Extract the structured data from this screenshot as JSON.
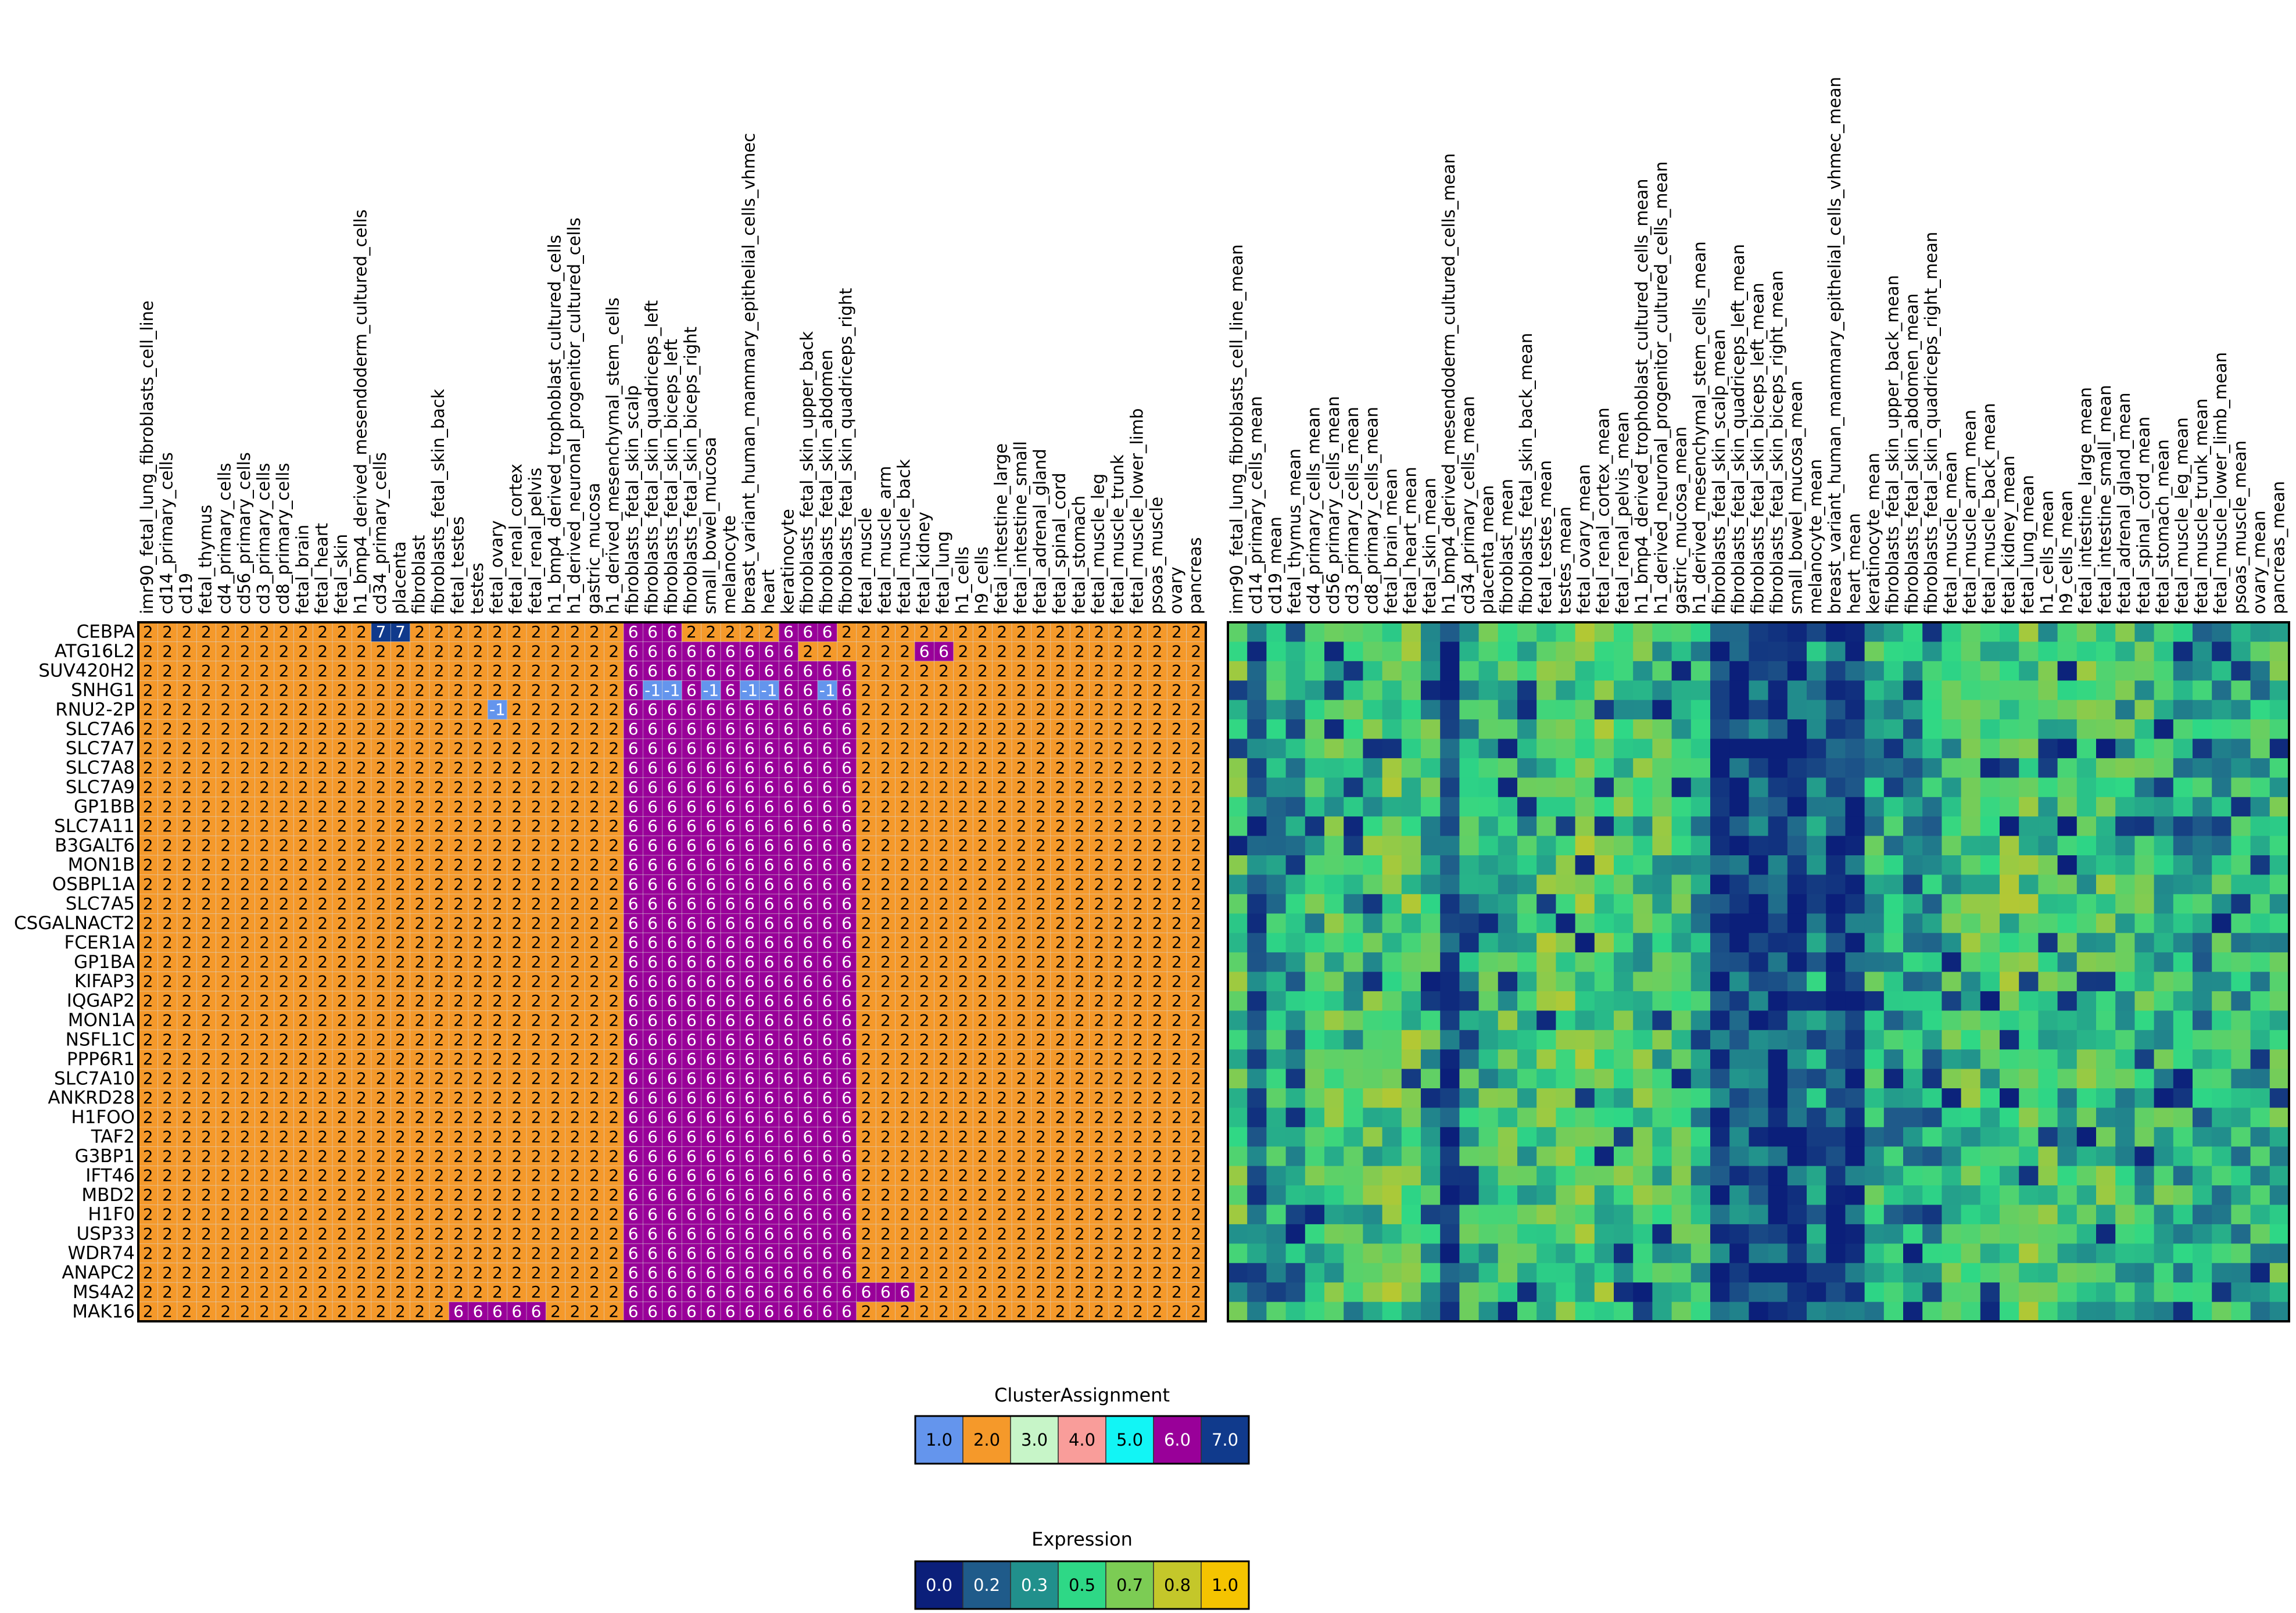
{
  "chart_data": [
    {
      "type": "heatmap",
      "panel": "cluster-assignment",
      "rows": [
        "CEBPA",
        "ATG16L2",
        "SUV420H2",
        "SNHG1",
        "RNU2-2P",
        "SLC7A6",
        "SLC7A7",
        "SLC7A8",
        "SLC7A9",
        "GP1BB",
        "SLC7A11",
        "B3GALT6",
        "MON1B",
        "OSBPL1A",
        "SLC7A5",
        "CSGALNACT2",
        "FCER1A",
        "GP1BA",
        "KIFAP3",
        "IQGAP2",
        "MON1A",
        "NSFL1C",
        "PPP6R1",
        "SLC7A10",
        "ANKRD28",
        "H1FOO",
        "TAF2",
        "G3BP1",
        "IFT46",
        "MBD2",
        "H1F0",
        "USP33",
        "WDR74",
        "ANAPC2",
        "MS4A2",
        "MAK16"
      ],
      "columns": [
        "imr90_fetal_lung_fibroblasts_cell_line",
        "cd14_primary_cells",
        "cd19",
        "fetal_thymus",
        "cd4_primary_cells",
        "cd56_primary_cells",
        "cd3_primary_cells",
        "cd8_primary_cells",
        "fetal_brain",
        "fetal_heart",
        "fetal_skin",
        "h1_bmp4_derived_mesendoderm_cultured_cells",
        "cd34_primary_cells",
        "placenta",
        "fibroblast",
        "fibroblasts_fetal_skin_back",
        "fetal_testes",
        "testes",
        "fetal_ovary",
        "fetal_renal_cortex",
        "fetal_renal_pelvis",
        "h1_bmp4_derived_trophoblast_cultured_cells",
        "h1_derived_neuronal_progenitor_cultured_cells",
        "gastric_mucosa",
        "h1_derived_mesenchymal_stem_cells",
        "fibroblasts_fetal_skin_scalp",
        "fibroblasts_fetal_skin_quadriceps_left",
        "fibroblasts_fetal_skin_biceps_left",
        "fibroblasts_fetal_skin_biceps_right",
        "small_bowel_mucosa",
        "melanocyte",
        "breast_variant_human_mammary_epithelial_cells_vhmec",
        "heart",
        "keratinocyte",
        "fibroblasts_fetal_skin_upper_back",
        "fibroblasts_fetal_skin_abdomen",
        "fibroblasts_fetal_skin_quadriceps_right",
        "fetal_muscle",
        "fetal_muscle_arm",
        "fetal_muscle_back",
        "fetal_kidney",
        "fetal_lung",
        "h1_cells",
        "h9_cells",
        "fetal_intestine_large",
        "fetal_intestine_small",
        "fetal_adrenal_gland",
        "fetal_spinal_cord",
        "fetal_stomach",
        "fetal_muscle_leg",
        "fetal_muscle_trunk",
        "fetal_muscle_lower_limb",
        "psoas_muscle",
        "ovary",
        "pancreas"
      ],
      "default_value": 2,
      "exceptions": [
        {
          "row": "CEBPA",
          "cols": [
            12,
            13
          ],
          "value": 7
        },
        {
          "row": "CEBPA",
          "cols": [
            25,
            26,
            27
          ],
          "value": 6
        },
        {
          "row": "CEBPA",
          "cols": [
            33,
            34,
            35
          ],
          "value": 6
        },
        {
          "row": "ATG16L2",
          "cols": [
            25,
            26,
            27,
            28,
            29,
            30,
            31,
            32,
            33
          ],
          "value": 6
        },
        {
          "row": "ATG16L2",
          "cols": [
            40,
            41
          ],
          "value": 6
        },
        {
          "row": "SUV420H2",
          "cols": [
            25,
            26,
            27,
            28,
            29,
            30,
            31,
            32,
            33,
            34,
            35,
            36
          ],
          "value": 6
        },
        {
          "row": "SNHG1",
          "cols": [
            25,
            28,
            30,
            33,
            34,
            36
          ],
          "value": 6
        },
        {
          "row": "SNHG1",
          "cols": [
            26,
            27,
            29,
            31,
            32,
            35
          ],
          "value": -1
        },
        {
          "row": "RNU2-2P",
          "cols": [
            18
          ],
          "value": -1
        },
        {
          "row": "RNU2-2P",
          "cols": [
            25,
            26,
            27,
            28,
            29,
            30,
            31,
            32,
            33,
            34,
            35,
            36
          ],
          "value": 6
        },
        {
          "row": "MS4A2",
          "cols": [
            37,
            38,
            39
          ],
          "value": 6
        },
        {
          "row": "MAK16",
          "cols": [
            16,
            17,
            18,
            19,
            20
          ],
          "value": 6
        }
      ],
      "body_rule": {
        "rows_from": "SLC7A6",
        "rows_to": "MAK16",
        "cols": [
          25,
          26,
          27,
          28,
          29,
          30,
          31,
          32,
          33,
          34,
          35,
          36
        ],
        "value": 6
      },
      "colors": {
        "-1": "#6495ed",
        "1": "#6495ed",
        "2": "#f5992a",
        "3": "#c7f5c8",
        "4": "#f99d9a",
        "5": "#12f5f5",
        "6": "#990099",
        "7": "#103a8c"
      }
    },
    {
      "type": "heatmap",
      "panel": "expression",
      "rows": [
        "CEBPA",
        "ATG16L2",
        "SUV420H2",
        "SNHG1",
        "RNU2-2P",
        "SLC7A6",
        "SLC7A7",
        "SLC7A8",
        "SLC7A9",
        "GP1BB",
        "SLC7A11",
        "B3GALT6",
        "MON1B",
        "OSBPL1A",
        "SLC7A5",
        "CSGALNACT2",
        "FCER1A",
        "GP1BA",
        "KIFAP3",
        "IQGAP2",
        "MON1A",
        "NSFL1C",
        "PPP6R1",
        "SLC7A10",
        "ANKRD28",
        "H1FOO",
        "TAF2",
        "G3BP1",
        "IFT46",
        "MBD2",
        "H1F0",
        "USP33",
        "WDR74",
        "ANAPC2",
        "MS4A2",
        "MAK16"
      ],
      "columns": [
        "imr90_fetal_lung_fibroblasts_cell_line_mean",
        "cd14_primary_cells_mean",
        "cd19_mean",
        "fetal_thymus_mean",
        "cd4_primary_cells_mean",
        "cd56_primary_cells_mean",
        "cd3_primary_cells_mean",
        "cd8_primary_cells_mean",
        "fetal_brain_mean",
        "fetal_heart_mean",
        "fetal_skin_mean",
        "h1_bmp4_derived_mesendoderm_cultured_cells_mean",
        "cd34_primary_cells_mean",
        "placenta_mean",
        "fibroblast_mean",
        "fibroblasts_fetal_skin_back_mean",
        "fetal_testes_mean",
        "testes_mean",
        "fetal_ovary_mean",
        "fetal_renal_cortex_mean",
        "fetal_renal_pelvis_mean",
        "h1_bmp4_derived_trophoblast_cultured_cells_mean",
        "h1_derived_neuronal_progenitor_cultured_cells_mean",
        "gastric_mucosa_mean",
        "h1_derived_mesenchymal_stem_cells_mean",
        "fibroblasts_fetal_skin_scalp_mean",
        "fibroblasts_fetal_skin_quadriceps_left_mean",
        "fibroblasts_fetal_skin_biceps_left_mean",
        "fibroblasts_fetal_skin_biceps_right_mean",
        "small_bowel_mucosa_mean",
        "melanocyte_mean",
        "breast_variant_human_mammary_epithelial_cells_vhmec_mean",
        "heart_mean",
        "keratinocyte_mean",
        "fibroblasts_fetal_skin_upper_back_mean",
        "fibroblasts_fetal_skin_abdomen_mean",
        "fibroblasts_fetal_skin_quadriceps_right_mean",
        "fetal_muscle_mean",
        "fetal_muscle_arm_mean",
        "fetal_muscle_back_mean",
        "fetal_kidney_mean",
        "fetal_lung_mean",
        "h1_cells_mean",
        "h9_cells_mean",
        "fetal_intestine_large_mean",
        "fetal_intestine_small_mean",
        "fetal_adrenal_gland_mean",
        "fetal_spinal_cord_mean",
        "fetal_stomach_mean",
        "fetal_muscle_leg_mean",
        "fetal_muscle_trunk_mean",
        "fetal_muscle_lower_limb_mean",
        "psoas_muscle_mean",
        "ovary_mean",
        "pancreas_mean"
      ],
      "values_note_low_columns": [
        11,
        25,
        26,
        27,
        28,
        29,
        31,
        32
      ],
      "column_bias": [
        0.55,
        0.25,
        0.4,
        0.3,
        0.5,
        0.55,
        0.5,
        0.55,
        0.6,
        0.6,
        0.5,
        0.1,
        0.45,
        0.5,
        0.55,
        0.45,
        0.6,
        0.6,
        0.6,
        0.6,
        0.55,
        0.55,
        0.55,
        0.5,
        0.45,
        0.15,
        0.15,
        0.15,
        0.1,
        0.15,
        0.3,
        0.12,
        0.12,
        0.45,
        0.4,
        0.35,
        0.35,
        0.5,
        0.55,
        0.55,
        0.6,
        0.6,
        0.55,
        0.5,
        0.55,
        0.55,
        0.5,
        0.5,
        0.5,
        0.45,
        0.4,
        0.45,
        0.45,
        0.45,
        0.5
      ],
      "vmin": 0,
      "vmax": 1
    }
  ],
  "legends": {
    "cluster": {
      "title": "ClusterAssignment",
      "items": [
        {
          "label": "1.0",
          "color": "#6495ed",
          "text_color": "#000000"
        },
        {
          "label": "2.0",
          "color": "#f5992a",
          "text_color": "#000000"
        },
        {
          "label": "3.0",
          "color": "#c7f5c8",
          "text_color": "#000000"
        },
        {
          "label": "4.0",
          "color": "#f99d9a",
          "text_color": "#000000"
        },
        {
          "label": "5.0",
          "color": "#12f5f5",
          "text_color": "#000000"
        },
        {
          "label": "6.0",
          "color": "#990099",
          "text_color": "#ffffff"
        },
        {
          "label": "7.0",
          "color": "#103a8c",
          "text_color": "#ffffff"
        }
      ]
    },
    "expression": {
      "title": "Expression",
      "items": [
        {
          "label": "0.0",
          "color": "#0b1f7a",
          "text_color": "#ffffff"
        },
        {
          "label": "0.2",
          "color": "#1f5b8a",
          "text_color": "#ffffff"
        },
        {
          "label": "0.3",
          "color": "#21908c",
          "text_color": "#ffffff"
        },
        {
          "label": "0.5",
          "color": "#2ed886",
          "text_color": "#000000"
        },
        {
          "label": "0.7",
          "color": "#7ccc54",
          "text_color": "#000000"
        },
        {
          "label": "0.8",
          "color": "#c4c72a",
          "text_color": "#000000"
        },
        {
          "label": "1.0",
          "color": "#f5c400",
          "text_color": "#000000"
        }
      ]
    }
  }
}
